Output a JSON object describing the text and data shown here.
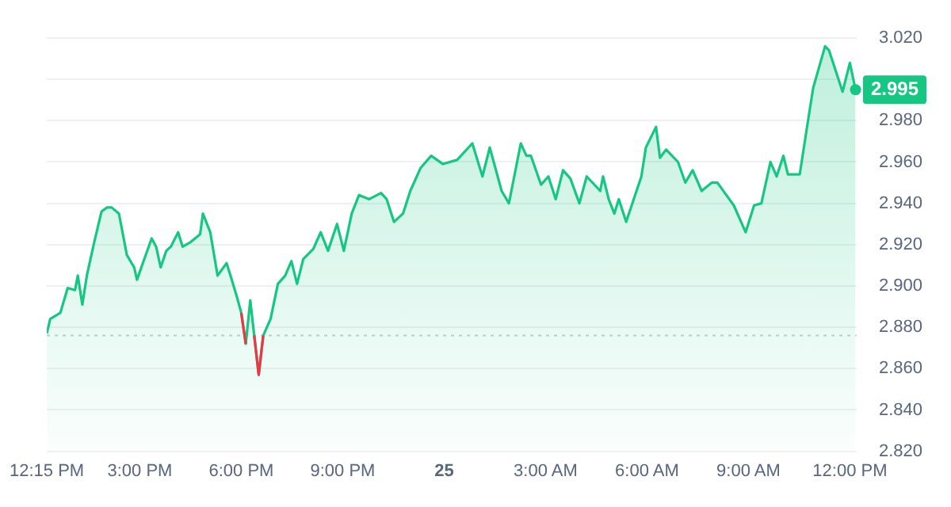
{
  "chart_data": {
    "type": "area",
    "x": [
      "--01-24T12:15",
      "--01-24T12:21",
      "--01-24T12:39",
      "--01-24T12:52",
      "--01-24T13:05",
      "--01-24T13:10",
      "--01-24T13:18",
      "--01-24T13:26",
      "--01-24T13:39",
      "--01-24T13:52",
      "--01-24T14:02",
      "--01-24T14:10",
      "--01-24T14:23",
      "--01-24T14:37",
      "--01-24T14:50",
      "--01-24T14:55",
      "--01-24T15:08",
      "--01-24T15:21",
      "--01-24T15:29",
      "--01-24T15:37",
      "--01-24T15:47",
      "--01-24T15:55",
      "--01-24T16:08",
      "--01-24T16:16",
      "--01-24T16:29",
      "--01-24T16:47",
      "--01-24T16:52",
      "--01-24T17:05",
      "--01-24T17:18",
      "--01-24T17:34",
      "--01-24T17:42",
      "--01-24T17:52",
      "--01-24T18:00",
      "--01-24T18:08",
      "--01-24T18:16",
      "--01-24T18:23",
      "--01-24T18:31",
      "--01-24T18:39",
      "--01-24T18:52",
      "--01-24T19:05",
      "--01-24T19:18",
      "--01-24T19:29",
      "--01-24T19:39",
      "--01-24T19:50",
      "--01-24T20:08",
      "--01-24T20:21",
      "--01-24T20:34",
      "--01-24T20:50",
      "--01-24T21:02",
      "--01-24T21:16",
      "--01-24T21:29",
      "--01-24T21:47",
      "--01-24T22:08",
      "--01-24T22:18",
      "--01-24T22:31",
      "--01-24T22:47",
      "--01-24T23:00",
      "--01-24T23:18",
      "--01-24T23:37",
      "--01-24T23:58",
      "--01-25T00:23",
      "--01-25T00:50",
      "--01-25T01:08",
      "--01-25T01:21",
      "--01-25T01:42",
      "--01-25T01:55",
      "--01-25T02:16",
      "--01-25T02:26",
      "--01-25T02:34",
      "--01-25T02:52",
      "--01-25T03:05",
      "--01-25T03:18",
      "--01-25T03:31",
      "--01-25T03:44",
      "--01-25T04:00",
      "--01-25T04:13",
      "--01-25T04:37",
      "--01-25T04:42",
      "--01-25T04:52",
      "--01-25T05:02",
      "--01-25T05:10",
      "--01-25T05:23",
      "--01-25T05:50",
      "--01-25T05:58",
      "--01-25T06:16",
      "--01-25T06:23",
      "--01-25T06:34",
      "--01-25T06:55",
      "--01-25T07:08",
      "--01-25T07:21",
      "--01-25T07:37",
      "--01-25T07:55",
      "--01-25T08:05",
      "--01-25T08:34",
      "--01-25T08:55",
      "--01-25T09:10",
      "--01-25T09:23",
      "--01-25T09:39",
      "--01-25T09:50",
      "--01-25T10:02",
      "--01-25T10:10",
      "--01-25T10:31",
      "--01-25T10:44",
      "--01-25T10:55",
      "--01-25T11:16",
      "--01-25T11:23",
      "--01-25T11:47",
      "--01-25T12:00",
      "--01-25T12:10"
    ],
    "series": [
      {
        "color": "#16c784",
        "values": [
          2.877,
          2.884,
          2.887,
          2.899,
          2.898,
          2.905,
          2.891,
          2.905,
          2.921,
          2.936,
          2.938,
          2.938,
          2.935,
          2.915,
          2.909,
          2.903,
          2.913,
          2.923,
          2.919,
          2.909,
          2.917,
          2.919,
          2.926,
          2.919,
          2.921,
          2.925,
          2.935,
          2.926,
          2.905,
          2.911,
          2.904,
          2.895,
          2.887,
          2.872,
          2.893,
          2.876,
          2.857,
          2.876,
          2.884,
          2.901,
          2.905,
          2.912,
          2.901,
          2.913,
          2.918,
          2.926,
          2.917,
          2.93,
          2.917,
          2.935,
          2.944,
          2.942,
          2.945,
          2.942,
          2.931,
          2.935,
          2.946,
          2.957,
          2.963,
          2.959,
          2.961,
          2.969,
          2.953,
          2.967,
          2.946,
          2.94,
          2.969,
          2.963,
          2.963,
          2.949,
          2.953,
          2.942,
          2.956,
          2.952,
          2.94,
          2.953,
          2.946,
          2.953,
          2.942,
          2.935,
          2.942,
          2.931,
          2.953,
          2.967,
          2.977,
          2.962,
          2.966,
          2.96,
          2.95,
          2.956,
          2.946,
          2.95,
          2.95,
          2.939,
          2.926,
          2.939,
          2.94,
          2.96,
          2.953,
          2.963,
          2.954,
          2.954,
          2.977,
          2.996,
          3.016,
          3.014,
          2.994,
          3.008,
          2.995
        ]
      },
      {
        "type": "line",
        "color": "#ea3943",
        "x": [
          "--01-24T18:00",
          "--01-24T18:08",
          "--01-24T18:16",
          "--01-24T18:23",
          "--01-24T18:31",
          "--01-24T18:39"
        ],
        "values": [
          2.887,
          2.872,
          null,
          2.876,
          2.857,
          2.876
        ]
      }
    ],
    "xlim": [
      "--01-24T12:15",
      "--01-25T12:12"
    ],
    "xticks": [
      {
        "value": "--01-24T12:15",
        "label": "12:15 PM"
      },
      {
        "value": "--01-24T15:00",
        "label": "3:00 PM"
      },
      {
        "value": "--01-24T18:00",
        "label": "6:00 PM"
      },
      {
        "value": "--01-24T21:00",
        "label": "9:00 PM"
      },
      {
        "value": "--01-25T00:00",
        "label": "25"
      },
      {
        "value": "--01-25T03:00",
        "label": "3:00 AM"
      },
      {
        "value": "--01-25T06:00",
        "label": "6:00 AM"
      },
      {
        "value": "--01-25T09:00",
        "label": "9:00 AM"
      },
      {
        "value": "--01-25T12:00",
        "label": "12:00 PM"
      }
    ],
    "ylim": [
      2.82,
      3.02
    ],
    "yticks": [
      {
        "value": 2.82,
        "label": "2.820"
      },
      {
        "value": 2.84,
        "label": "2.840"
      },
      {
        "value": 2.86,
        "label": "2.860"
      },
      {
        "value": 2.88,
        "label": "2.880"
      },
      {
        "value": 2.9,
        "label": "2.900"
      },
      {
        "value": 2.92,
        "label": "2.920"
      },
      {
        "value": 2.94,
        "label": "2.940"
      },
      {
        "value": 2.96,
        "label": "2.960"
      },
      {
        "value": 2.98,
        "label": "2.980"
      },
      {
        "value": 3.0,
        "label": null
      },
      {
        "value": 3.02,
        "label": "3.020"
      }
    ],
    "ref_lines": [
      {
        "axis": "y",
        "value": 2.876,
        "color": "#c8ccd4",
        "line_style": "dotted"
      }
    ],
    "annotations": [
      {
        "text": "2.995",
        "x": "--01-25T12:10",
        "y": 2.995
      }
    ],
    "grid": "y",
    "legend": false,
    "marker": "none"
  }
}
